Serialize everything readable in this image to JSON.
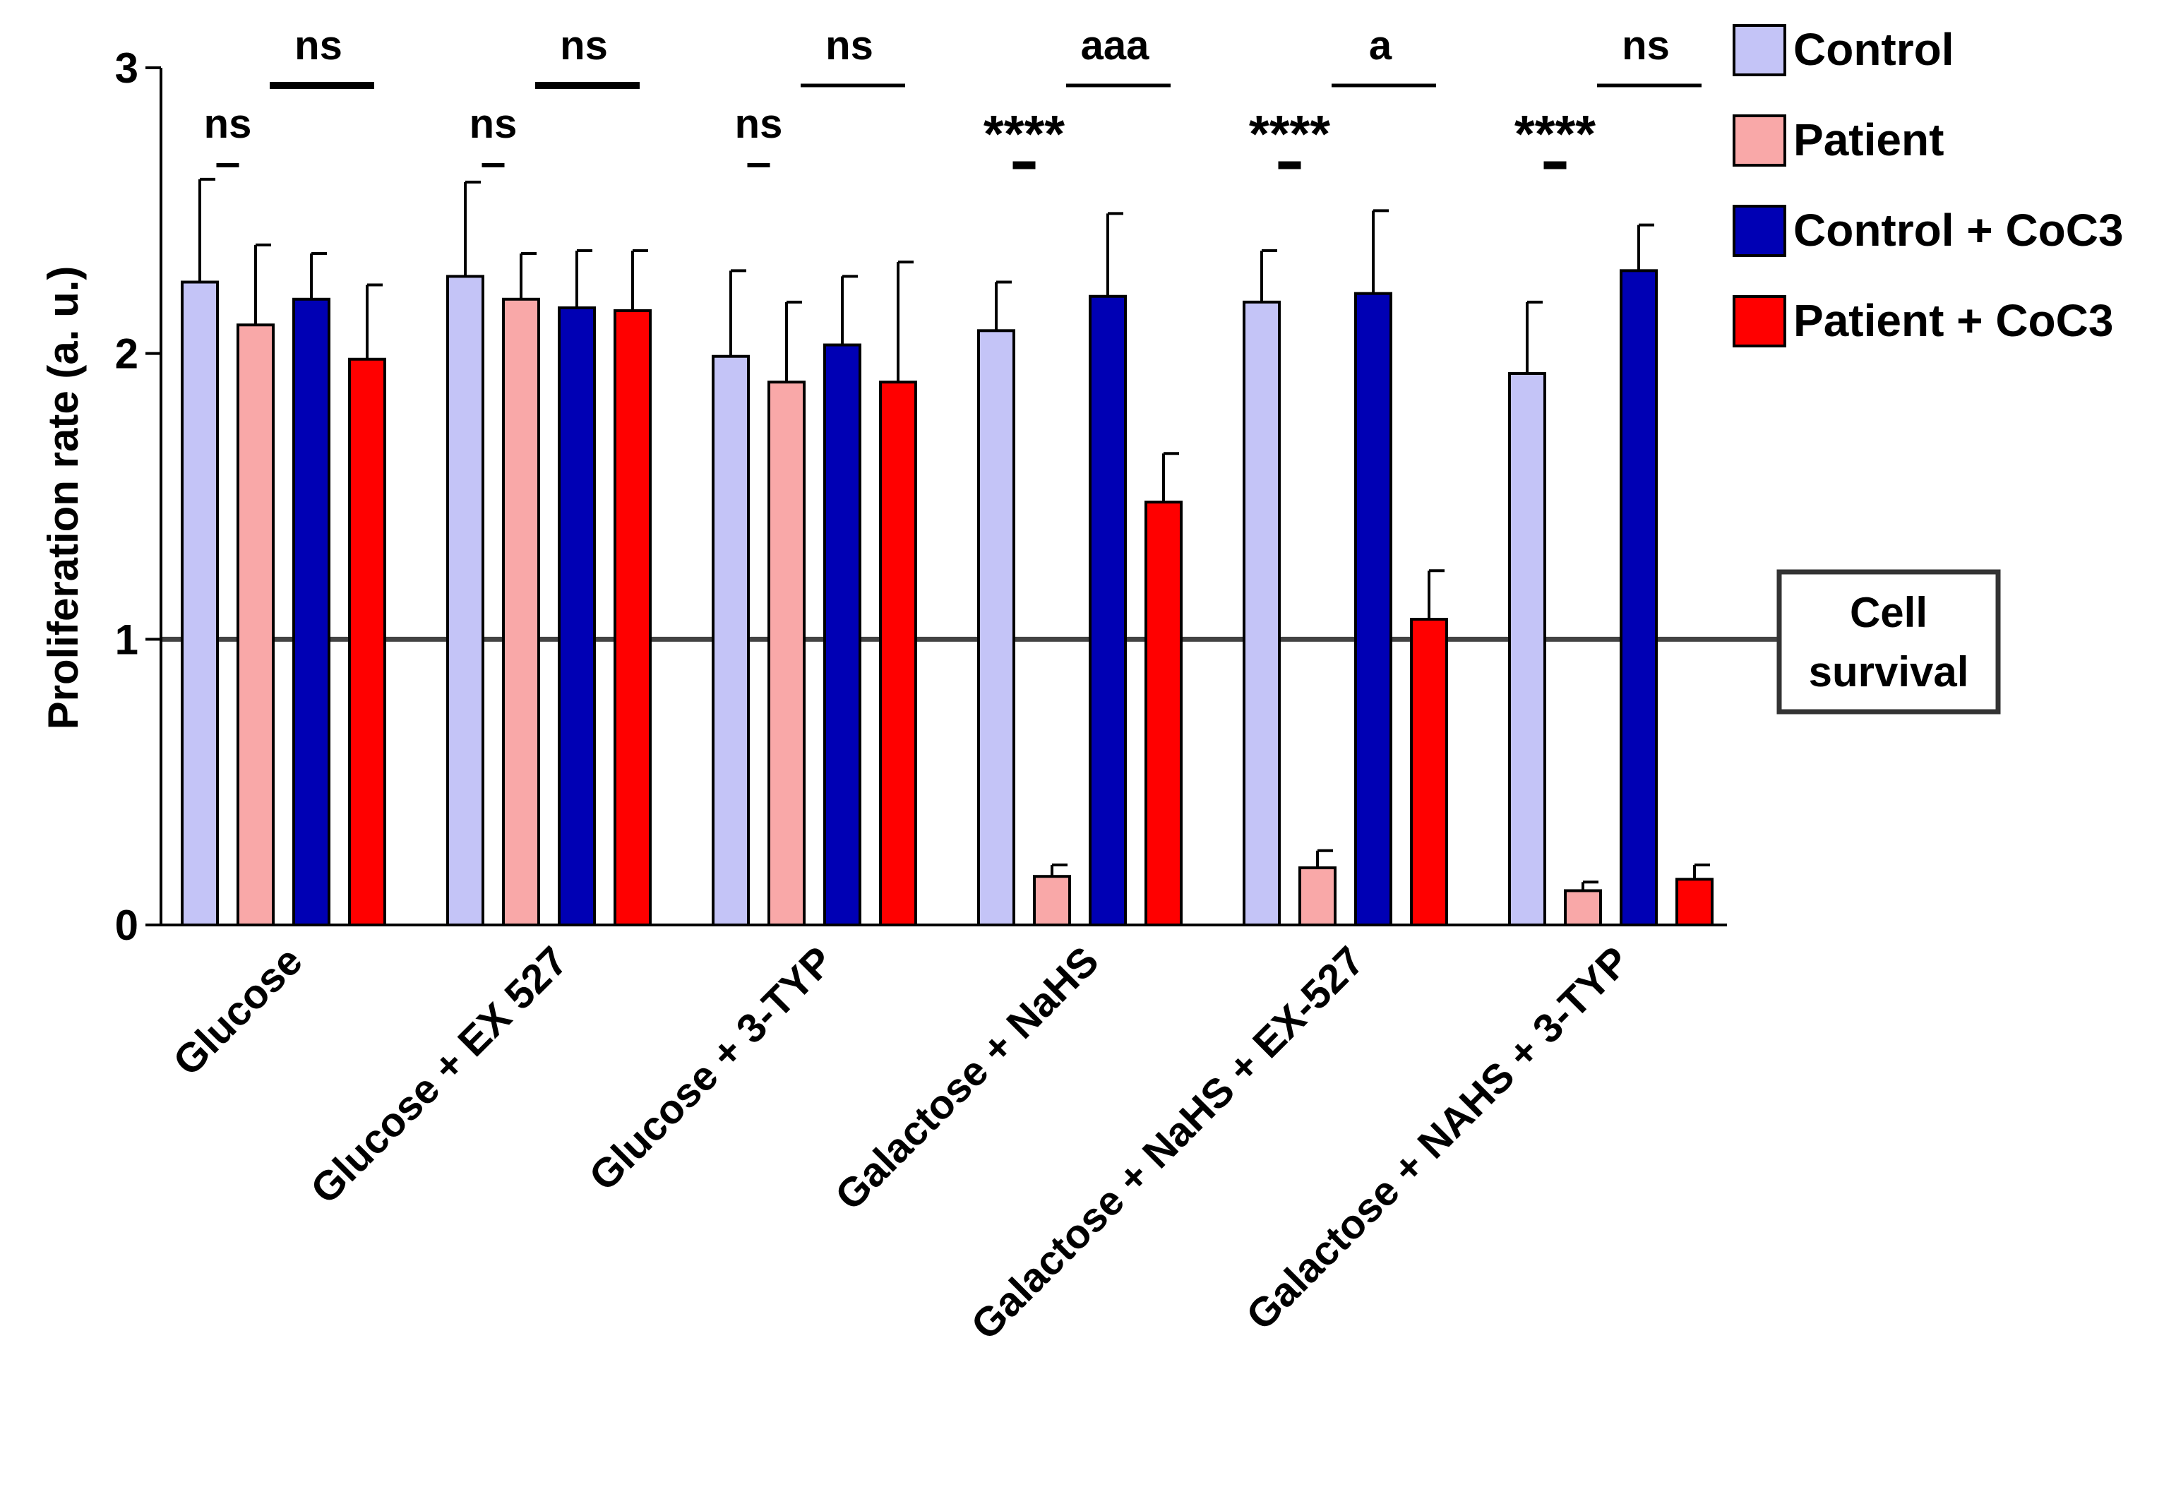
{
  "chart_data": {
    "type": "bar",
    "ylabel": "Proliferation rate (a. u.)",
    "ylim": [
      0,
      3
    ],
    "yticks": [
      "0",
      "1",
      "2",
      "3"
    ],
    "categories": [
      "Glucose",
      "Glucose + EX 527",
      "Glucose + 3-TYP",
      "Galactose + NaHS",
      "Galactose + NaHS + EX-527",
      "Galactose + NAHS + 3-TYP"
    ],
    "series": [
      {
        "name": "Control",
        "color": "#c4c4f7",
        "values": [
          2.25,
          2.27,
          1.99,
          2.08,
          2.18,
          1.93
        ],
        "errors": [
          0.36,
          0.33,
          0.3,
          0.17,
          0.18,
          0.25
        ]
      },
      {
        "name": "Patient",
        "color": "#f9a8a8",
        "values": [
          2.1,
          2.19,
          1.9,
          0.17,
          0.2,
          0.12
        ],
        "errors": [
          0.28,
          0.16,
          0.28,
          0.04,
          0.06,
          0.03
        ]
      },
      {
        "name": "Control + CoC3",
        "color": "#0000b4",
        "values": [
          2.19,
          2.16,
          2.03,
          2.2,
          2.21,
          2.29
        ],
        "errors": [
          0.16,
          0.2,
          0.24,
          0.29,
          0.29,
          0.16
        ]
      },
      {
        "name": "Patient + CoC3",
        "color": "#ff0000",
        "values": [
          1.98,
          2.15,
          1.9,
          1.48,
          1.07,
          0.16
        ],
        "errors": [
          0.26,
          0.21,
          0.42,
          0.17,
          0.17,
          0.05
        ]
      }
    ],
    "reference_line": {
      "value": 1,
      "label_line1": "Cell",
      "label_line2": "survival"
    },
    "significance": [
      {
        "left": "ns",
        "right": "ns"
      },
      {
        "left": "ns",
        "right": "ns"
      },
      {
        "left": "ns",
        "right": "ns"
      },
      {
        "left": "****",
        "right": "aaa"
      },
      {
        "left": "****",
        "right": "a"
      },
      {
        "left": "****",
        "right": "ns"
      }
    ],
    "legend_position": "top-right"
  }
}
